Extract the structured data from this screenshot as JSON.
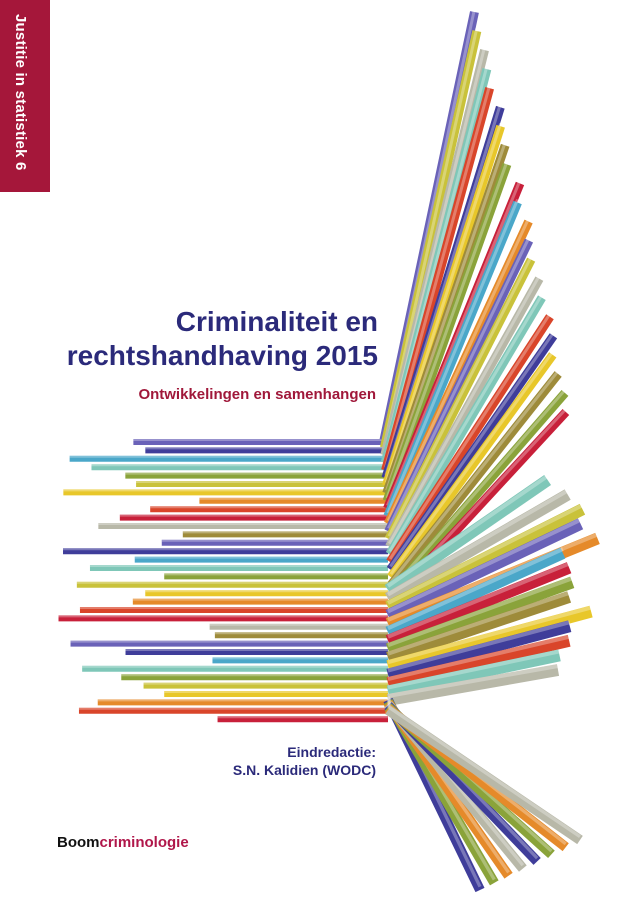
{
  "series_label": "Justitie in statistiek 6",
  "title_line1": "Criminaliteit en",
  "title_line2": "rechtshandhaving 2015",
  "subtitle": "Ontwikkelingen en samenhangen",
  "editor_label": "Eindredactie:",
  "editor_name": "S.N. Kalidien (WODC)",
  "publisher": {
    "part1": "Boom",
    "part2": "criminologie"
  },
  "colors": {
    "band": "#a5173a",
    "title": "#2b2a7a",
    "subtitle": "#a0183a",
    "palette": [
      "#6a62b8",
      "#3f3d9a",
      "#4aa7c9",
      "#7fc7b8",
      "#8aa33a",
      "#c9c23a",
      "#e8c72a",
      "#e58a2a",
      "#d9452a",
      "#c8203a",
      "#b8b8a8",
      "#9e8b3a"
    ]
  }
}
